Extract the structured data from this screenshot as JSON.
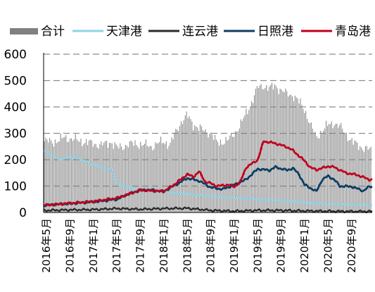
{
  "chart_data": {
    "type": "bar+line",
    "title": "",
    "xlabel": "",
    "ylabel": "",
    "ylim": [
      0,
      600
    ],
    "yticks": [
      0,
      100,
      200,
      300,
      400,
      500,
      600
    ],
    "grid": "horizontal-dashed",
    "legend_position": "top",
    "x_tick_labels": [
      "2016年5月",
      "2016年9月",
      "2017年1月",
      "2017年5月",
      "2017年9月",
      "2018年1月",
      "2018年5月",
      "2018年9月",
      "2019年1月",
      "2019年5月",
      "2019年9月",
      "2020年1月",
      "2020年5月",
      "2020年9月"
    ],
    "x_tick_months": [
      "2016-05",
      "2016-09",
      "2017-01",
      "2017-05",
      "2017-09",
      "2018-01",
      "2018-05",
      "2018-09",
      "2019-01",
      "2019-05",
      "2019-09",
      "2020-01",
      "2020-05",
      "2020-09"
    ],
    "x_range": [
      "2016-05",
      "2020-12"
    ],
    "bar_series": {
      "name": "合计",
      "color": "#808080",
      "points": [
        [
          "2016-05",
          270
        ],
        [
          "2016-06",
          268
        ],
        [
          "2016-07",
          272
        ],
        [
          "2016-08",
          285
        ],
        [
          "2016-09",
          280
        ],
        [
          "2016-10",
          275
        ],
        [
          "2016-11",
          270
        ],
        [
          "2016-12",
          265
        ],
        [
          "2017-01",
          262
        ],
        [
          "2017-02",
          255
        ],
        [
          "2017-03",
          260
        ],
        [
          "2017-04",
          268
        ],
        [
          "2017-05",
          245
        ],
        [
          "2017-06",
          250
        ],
        [
          "2017-07",
          258
        ],
        [
          "2017-08",
          262
        ],
        [
          "2017-09",
          258
        ],
        [
          "2017-10",
          255
        ],
        [
          "2017-11",
          250
        ],
        [
          "2017-12",
          262
        ],
        [
          "2018-01",
          270
        ],
        [
          "2018-02",
          255
        ],
        [
          "2018-03",
          305
        ],
        [
          "2018-04",
          345
        ],
        [
          "2018-05",
          368
        ],
        [
          "2018-06",
          335
        ],
        [
          "2018-07",
          318
        ],
        [
          "2018-08",
          310
        ],
        [
          "2018-09",
          300
        ],
        [
          "2018-10",
          265
        ],
        [
          "2018-11",
          268
        ],
        [
          "2018-12",
          275
        ],
        [
          "2019-01",
          300
        ],
        [
          "2019-02",
          330
        ],
        [
          "2019-03",
          375
        ],
        [
          "2019-04",
          420
        ],
        [
          "2019-05",
          475
        ],
        [
          "2019-06",
          480
        ],
        [
          "2019-07",
          470
        ],
        [
          "2019-08",
          482
        ],
        [
          "2019-09",
          462
        ],
        [
          "2019-10",
          450
        ],
        [
          "2019-11",
          445
        ],
        [
          "2019-12",
          420
        ],
        [
          "2020-01",
          390
        ],
        [
          "2020-02",
          330
        ],
        [
          "2020-03",
          285
        ],
        [
          "2020-04",
          310
        ],
        [
          "2020-05",
          332
        ],
        [
          "2020-06",
          340
        ],
        [
          "2020-07",
          325
        ],
        [
          "2020-08",
          300
        ],
        [
          "2020-09",
          270
        ],
        [
          "2020-10",
          255
        ],
        [
          "2020-11",
          245
        ],
        [
          "2020-12",
          238
        ]
      ]
    },
    "series": [
      {
        "name": "天津港",
        "color": "#8fd3e8",
        "points": [
          [
            "2016-05",
            232
          ],
          [
            "2016-07",
            200
          ],
          [
            "2016-09",
            212
          ],
          [
            "2016-11",
            200
          ],
          [
            "2017-01",
            182
          ],
          [
            "2017-03",
            165
          ],
          [
            "2017-04",
            165
          ],
          [
            "2017-05",
            110
          ],
          [
            "2017-07",
            95
          ],
          [
            "2017-09",
            85
          ],
          [
            "2017-11",
            80
          ],
          [
            "2018-01",
            78
          ],
          [
            "2018-05",
            70
          ],
          [
            "2018-09",
            62
          ],
          [
            "2019-01",
            55
          ],
          [
            "2019-05",
            50
          ],
          [
            "2019-09",
            45
          ],
          [
            "2020-01",
            38
          ],
          [
            "2020-05",
            32
          ],
          [
            "2020-09",
            30
          ],
          [
            "2020-12",
            28
          ]
        ]
      },
      {
        "name": "连云港",
        "color": "#2b2b2b",
        "points": [
          [
            "2016-05",
            8
          ],
          [
            "2016-09",
            10
          ],
          [
            "2017-01",
            11
          ],
          [
            "2017-05",
            15
          ],
          [
            "2017-09",
            12
          ],
          [
            "2018-01",
            15
          ],
          [
            "2018-05",
            16
          ],
          [
            "2018-09",
            8
          ],
          [
            "2019-01",
            5
          ],
          [
            "2019-05",
            8
          ],
          [
            "2019-09",
            8
          ],
          [
            "2020-01",
            6
          ],
          [
            "2020-05",
            5
          ],
          [
            "2020-09",
            4
          ],
          [
            "2020-12",
            4
          ]
        ]
      },
      {
        "name": "日照港",
        "color": "#0d3d63",
        "points": [
          [
            "2016-05",
            28
          ],
          [
            "2016-09",
            34
          ],
          [
            "2017-01",
            40
          ],
          [
            "2017-05",
            50
          ],
          [
            "2017-07",
            70
          ],
          [
            "2017-09",
            85
          ],
          [
            "2017-11",
            85
          ],
          [
            "2018-01",
            80
          ],
          [
            "2018-03",
            105
          ],
          [
            "2018-05",
            130
          ],
          [
            "2018-07",
            120
          ],
          [
            "2018-09",
            95
          ],
          [
            "2018-11",
            88
          ],
          [
            "2019-01",
            105
          ],
          [
            "2019-03",
            125
          ],
          [
            "2019-05",
            165
          ],
          [
            "2019-07",
            160
          ],
          [
            "2019-08",
            172
          ],
          [
            "2019-10",
            160
          ],
          [
            "2019-11",
            168
          ],
          [
            "2019-12",
            145
          ],
          [
            "2020-01",
            105
          ],
          [
            "2020-03",
            80
          ],
          [
            "2020-04",
            125
          ],
          [
            "2020-05",
            138
          ],
          [
            "2020-06",
            125
          ],
          [
            "2020-07",
            100
          ],
          [
            "2020-09",
            98
          ],
          [
            "2020-11",
            82
          ],
          [
            "2020-12",
            98
          ]
        ]
      },
      {
        "name": "青岛港",
        "color": "#c0001e",
        "points": [
          [
            "2016-05",
            28
          ],
          [
            "2016-09",
            35
          ],
          [
            "2017-01",
            42
          ],
          [
            "2017-05",
            55
          ],
          [
            "2017-07",
            70
          ],
          [
            "2017-09",
            85
          ],
          [
            "2017-11",
            82
          ],
          [
            "2018-01",
            80
          ],
          [
            "2018-03",
            110
          ],
          [
            "2018-05",
            145
          ],
          [
            "2018-06",
            135
          ],
          [
            "2018-07",
            155
          ],
          [
            "2018-08",
            118
          ],
          [
            "2018-09",
            110
          ],
          [
            "2018-10",
            100
          ],
          [
            "2018-12",
            105
          ],
          [
            "2019-01",
            98
          ],
          [
            "2019-02",
            115
          ],
          [
            "2019-03",
            170
          ],
          [
            "2019-05",
            200
          ],
          [
            "2019-06",
            270
          ],
          [
            "2019-08",
            262
          ],
          [
            "2019-10",
            248
          ],
          [
            "2019-11",
            235
          ],
          [
            "2020-01",
            195
          ],
          [
            "2020-02",
            170
          ],
          [
            "2020-03",
            162
          ],
          [
            "2020-05",
            175
          ],
          [
            "2020-06",
            172
          ],
          [
            "2020-08",
            150
          ],
          [
            "2020-10",
            142
          ],
          [
            "2020-12",
            125
          ]
        ]
      }
    ]
  }
}
